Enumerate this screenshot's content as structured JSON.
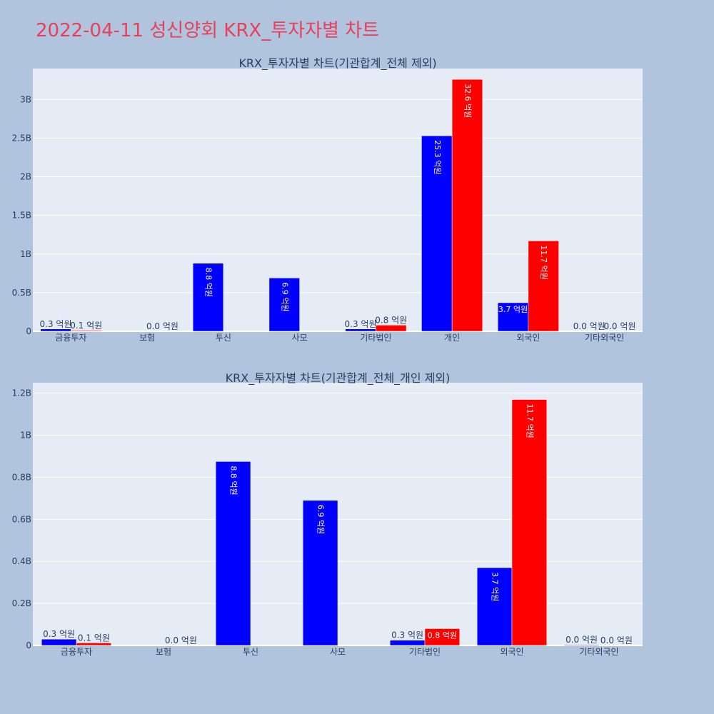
{
  "page": {
    "title": "2022-04-11 성신양회 KRX_투자자별 차트"
  },
  "chart_data": [
    {
      "type": "bar",
      "title": "KRX_투자자별 차트(기관합계_전체 제외)",
      "categories": [
        "금융투자",
        "보험",
        "투신",
        "사모",
        "기타법인",
        "개인",
        "외국인",
        "기타외국인"
      ],
      "ylim": [
        0,
        3.4
      ],
      "yticks": [
        0,
        0.5,
        1,
        1.5,
        2,
        2.5,
        3
      ],
      "ytick_labels": [
        "0",
        "0.5B",
        "1B",
        "1.5B",
        "2B",
        "2.5B",
        "3B"
      ],
      "grid": true,
      "series": [
        {
          "color": "#0000ff",
          "values": [
            0.03,
            0,
            0.88,
            0.69,
            0.03,
            2.53,
            0.37,
            0
          ],
          "labels": [
            "0.3 억원",
            "",
            "8.8 억원",
            "6.9 억원",
            "0.3 억원",
            "25.3 억원",
            "3.7 억원",
            "0.0 억원"
          ]
        },
        {
          "color": "#ff0000",
          "values": [
            0.01,
            0,
            0,
            0,
            0.08,
            3.26,
            1.17,
            0
          ],
          "labels": [
            "0.1 억원",
            "0.0 억원",
            "",
            "",
            "0.8 억원",
            "32.6 억원",
            "11.7 억원",
            "0.0 억원"
          ]
        }
      ]
    },
    {
      "type": "bar",
      "title": "KRX_투자자별 차트(기관합계_전체_개인 제외)",
      "categories": [
        "금융투자",
        "보험",
        "투신",
        "사모",
        "기타법인",
        "외국인",
        "기타외국인"
      ],
      "ylim": [
        0,
        1.25
      ],
      "yticks": [
        0,
        0.2,
        0.4,
        0.6,
        0.8,
        1,
        1.2
      ],
      "ytick_labels": [
        "0",
        "0.2B",
        "0.4B",
        "0.6B",
        "0.8B",
        "1B",
        "1.2B"
      ],
      "grid": true,
      "series": [
        {
          "color": "#0000ff",
          "values": [
            0.03,
            0,
            0.875,
            0.69,
            0.025,
            0.37,
            0.003
          ],
          "labels": [
            "0.3 억원",
            "",
            "8.8 억원",
            "6.9 억원",
            "0.3 억원",
            "3.7 억원",
            "0.0 억원"
          ]
        },
        {
          "color": "#ff0000",
          "values": [
            0.012,
            0,
            0,
            0,
            0.08,
            1.17,
            0
          ],
          "labels": [
            "0.1 억원",
            "0.0 억원",
            "",
            "",
            "0.8 억원",
            "11.7 억원",
            "0.0 억원"
          ]
        }
      ]
    }
  ]
}
